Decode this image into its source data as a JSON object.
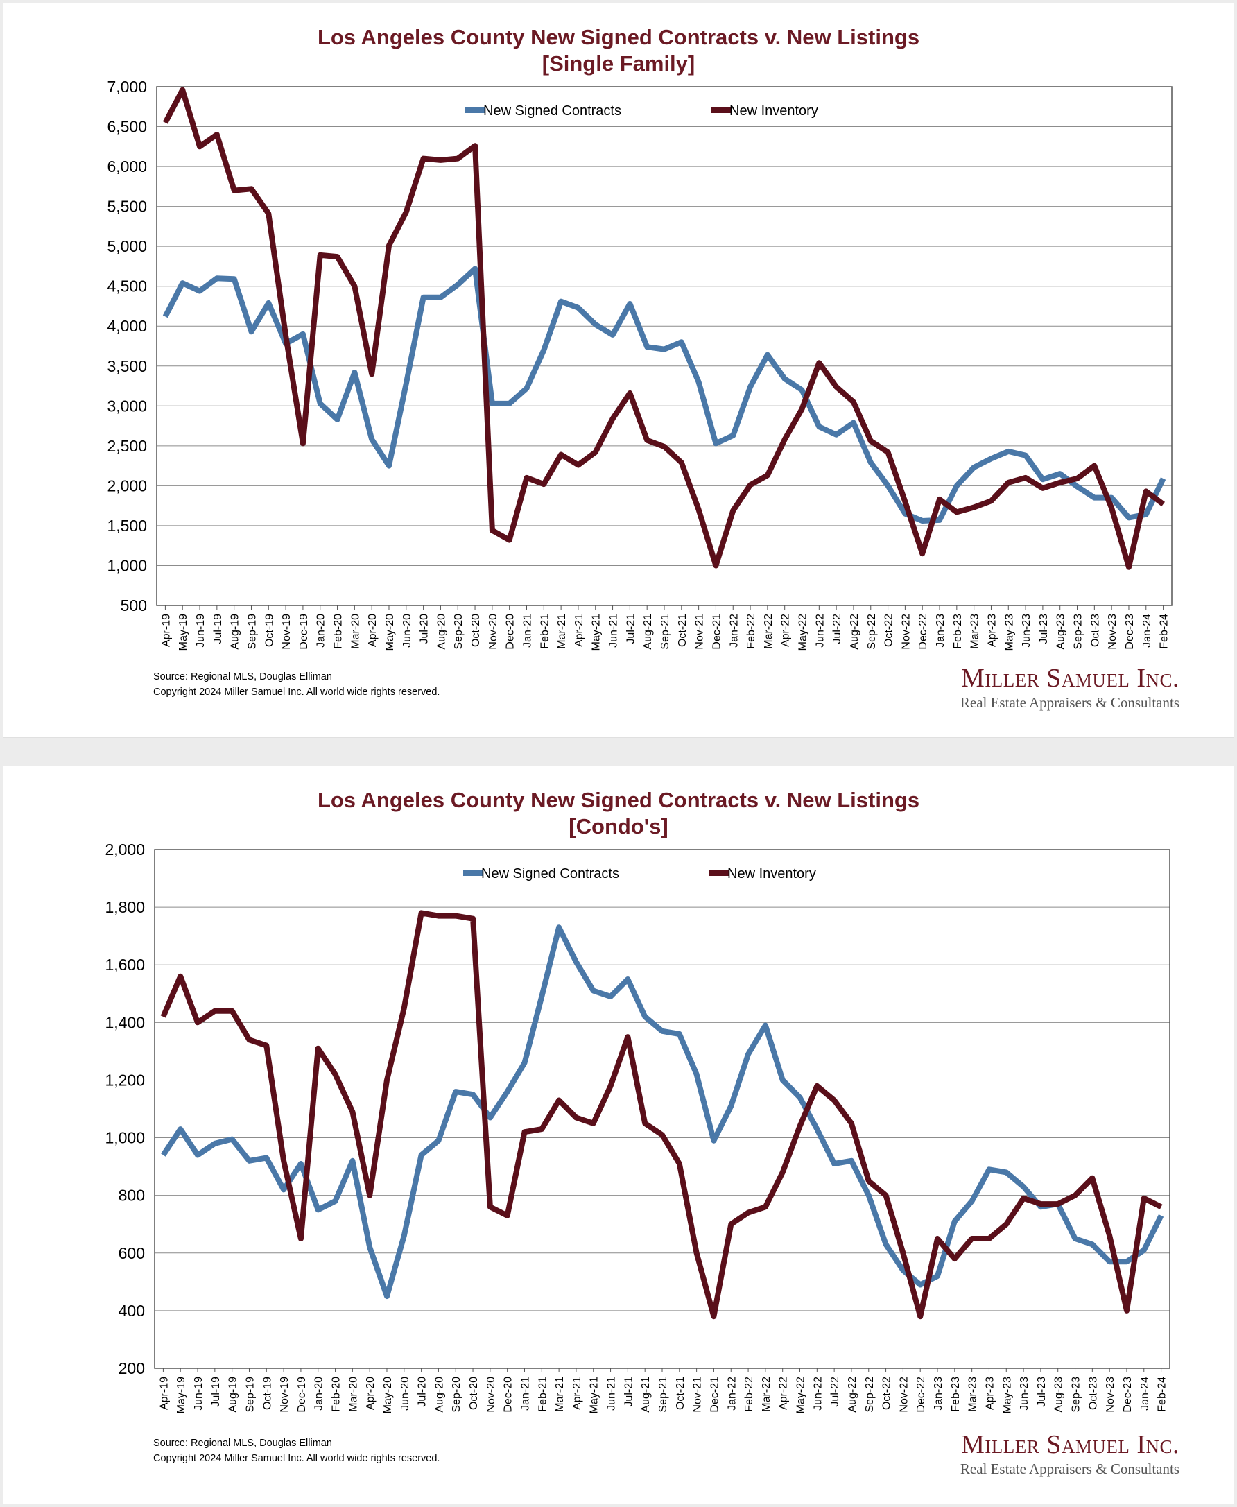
{
  "colors": {
    "contracts": "#4a78a8",
    "inventory": "#5a0f1a",
    "title": "#6b1a24"
  },
  "footer": {
    "source": "Source: Regional MLS, Douglas Elliman",
    "copyright": "Copyright 2024 Miller Samuel Inc.  All world wide rights reserved."
  },
  "brand": {
    "name": "Miller Samuel Inc.",
    "subtitle": "Real Estate Appraisers & Consultants"
  },
  "chart_data": [
    {
      "type": "line",
      "title": "Los Angeles County New Signed Contracts v. New Listings",
      "subtitle": "[Single Family]",
      "legend_position": "top-center",
      "grid": true,
      "ylim": [
        500,
        7000
      ],
      "yticks": [
        500,
        1000,
        1500,
        2000,
        2500,
        3000,
        3500,
        4000,
        4500,
        5000,
        5500,
        6000,
        6500,
        7000
      ],
      "ytick_labels": [
        "500",
        "1,000",
        "1,500",
        "2,000",
        "2,500",
        "3,000",
        "3,500",
        "4,000",
        "4,500",
        "5,000",
        "5,500",
        "6,000",
        "6,500",
        "7,000"
      ],
      "categories": [
        "Apr-19",
        "May-19",
        "Jun-19",
        "Jul-19",
        "Aug-19",
        "Sep-19",
        "Oct-19",
        "Nov-19",
        "Dec-19",
        "Jan-20",
        "Feb-20",
        "Mar-20",
        "Apr-20",
        "May-20",
        "Jun-20",
        "Jul-20",
        "Aug-20",
        "Sep-20",
        "Oct-20",
        "Nov-20",
        "Dec-20",
        "Jan-21",
        "Feb-21",
        "Mar-21",
        "Apr-21",
        "May-21",
        "Jun-21",
        "Jul-21",
        "Aug-21",
        "Sep-21",
        "Oct-21",
        "Nov-21",
        "Dec-21",
        "Jan-22",
        "Feb-22",
        "Mar-22",
        "Apr-22",
        "May-22",
        "Jun-22",
        "Jul-22",
        "Aug-22",
        "Sep-22",
        "Oct-22",
        "Nov-22",
        "Dec-22",
        "Jan-23",
        "Feb-23",
        "Mar-23",
        "Apr-23",
        "May-23",
        "Jun-23",
        "Jul-23",
        "Aug-23",
        "Sep-23",
        "Oct-23",
        "Nov-23",
        "Dec-23",
        "Jan-24",
        "Feb-24"
      ],
      "series": [
        {
          "name": "New Signed Contracts",
          "values": [
            4120,
            4540,
            4440,
            4600,
            4590,
            3930,
            4290,
            3780,
            3900,
            3030,
            2830,
            3420,
            2580,
            2250,
            3280,
            4360,
            4360,
            4520,
            4720,
            3030,
            3030,
            3220,
            3700,
            4310,
            4230,
            4020,
            3890,
            4280,
            3740,
            3710,
            3800,
            3300,
            2530,
            2630,
            3240,
            3640,
            3340,
            3200,
            2740,
            2640,
            2790,
            2290,
            2000,
            1650,
            1560,
            1570,
            2000,
            2230,
            2340,
            2430,
            2380,
            2080,
            2150,
            1990,
            1850,
            1850,
            1600,
            1640,
            2090
          ]
        },
        {
          "name": "New Inventory",
          "values": [
            6550,
            6960,
            6250,
            6400,
            5700,
            5720,
            5410,
            3880,
            2530,
            4890,
            4870,
            4500,
            3400,
            5010,
            5430,
            6100,
            6080,
            6100,
            6260,
            1440,
            1320,
            2100,
            2020,
            2390,
            2260,
            2420,
            2840,
            3160,
            2570,
            2490,
            2290,
            1700,
            1000,
            1690,
            2010,
            2130,
            2580,
            2960,
            3540,
            3240,
            3050,
            2560,
            2420,
            1800,
            1150,
            1830,
            1670,
            1730,
            1810,
            2040,
            2100,
            1970,
            2040,
            2090,
            2250,
            1720,
            980,
            1930,
            1770
          ]
        }
      ]
    },
    {
      "type": "line",
      "title": "Los Angeles County New Signed Contracts v. New Listings",
      "subtitle": "[Condo's]",
      "legend_position": "top-center",
      "grid": true,
      "ylim": [
        200,
        2000
      ],
      "yticks": [
        200,
        400,
        600,
        800,
        1000,
        1200,
        1400,
        1600,
        1800,
        2000
      ],
      "ytick_labels": [
        "200",
        "400",
        "600",
        "800",
        "1,000",
        "1,200",
        "1,400",
        "1,600",
        "1,800",
        "2,000"
      ],
      "categories": [
        "Apr-19",
        "May-19",
        "Jun-19",
        "Jul-19",
        "Aug-19",
        "Sep-19",
        "Oct-19",
        "Nov-19",
        "Dec-19",
        "Jan-20",
        "Feb-20",
        "Mar-20",
        "Apr-20",
        "May-20",
        "Jun-20",
        "Jul-20",
        "Aug-20",
        "Sep-20",
        "Oct-20",
        "Nov-20",
        "Dec-20",
        "Jan-21",
        "Feb-21",
        "Mar-21",
        "Apr-21",
        "May-21",
        "Jun-21",
        "Jul-21",
        "Aug-21",
        "Sep-21",
        "Oct-21",
        "Nov-21",
        "Dec-21",
        "Jan-22",
        "Feb-22",
        "Mar-22",
        "Apr-22",
        "May-22",
        "Jun-22",
        "Jul-22",
        "Aug-22",
        "Sep-22",
        "Oct-22",
        "Nov-22",
        "Dec-22",
        "Jan-23",
        "Feb-23",
        "Mar-23",
        "Apr-23",
        "May-23",
        "Jun-23",
        "Jul-23",
        "Aug-23",
        "Sep-23",
        "Oct-23",
        "Nov-23",
        "Dec-23",
        "Jan-24",
        "Feb-24"
      ],
      "series": [
        {
          "name": "New Signed Contracts",
          "values": [
            940,
            1030,
            940,
            980,
            995,
            920,
            930,
            820,
            910,
            750,
            780,
            920,
            620,
            450,
            660,
            940,
            990,
            1160,
            1150,
            1070,
            1160,
            1260,
            1490,
            1730,
            1610,
            1510,
            1490,
            1550,
            1420,
            1370,
            1360,
            1220,
            990,
            1110,
            1290,
            1390,
            1200,
            1140,
            1030,
            910,
            920,
            800,
            630,
            540,
            490,
            520,
            710,
            780,
            890,
            880,
            830,
            760,
            770,
            650,
            630,
            570,
            570,
            610,
            730
          ]
        },
        {
          "name": "New Inventory",
          "values": [
            1420,
            1560,
            1400,
            1440,
            1440,
            1340,
            1320,
            920,
            650,
            1310,
            1220,
            1090,
            800,
            1200,
            1450,
            1780,
            1770,
            1770,
            1760,
            760,
            730,
            1020,
            1030,
            1130,
            1070,
            1050,
            1180,
            1350,
            1050,
            1010,
            910,
            600,
            380,
            700,
            740,
            760,
            880,
            1040,
            1180,
            1130,
            1050,
            850,
            800,
            600,
            380,
            650,
            580,
            650,
            650,
            700,
            790,
            770,
            770,
            800,
            860,
            660,
            400,
            790,
            760
          ]
        }
      ]
    }
  ]
}
